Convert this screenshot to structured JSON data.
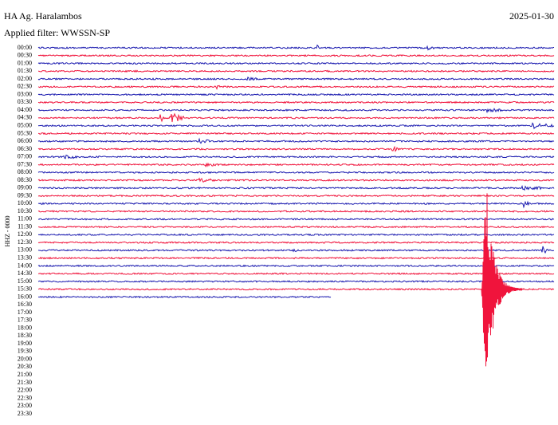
{
  "header": {
    "station": "HA Ag. Haralambos",
    "date": "2025-01-30",
    "filter": "Applied filter: WWSSN-SP"
  },
  "channel": "HHZ - 0000",
  "time_labels": [
    "00:00",
    "00:30",
    "01:00",
    "01:30",
    "02:00",
    "02:30",
    "03:00",
    "03:30",
    "04:00",
    "04:30",
    "05:00",
    "05:30",
    "06:00",
    "06:30",
    "07:00",
    "07:30",
    "08:00",
    "08:30",
    "09:00",
    "09:30",
    "10:00",
    "10:30",
    "11:00",
    "11:30",
    "12:00",
    "12:30",
    "13:00",
    "13:30",
    "14:00",
    "14:30",
    "15:00",
    "15:30",
    "16:00",
    "16:30",
    "17:00",
    "17:30",
    "18:00",
    "18:30",
    "19:00",
    "19:30",
    "20:00",
    "20:30",
    "21:00",
    "21:30",
    "22:00",
    "22:30",
    "23:00",
    "23:30"
  ]
}
